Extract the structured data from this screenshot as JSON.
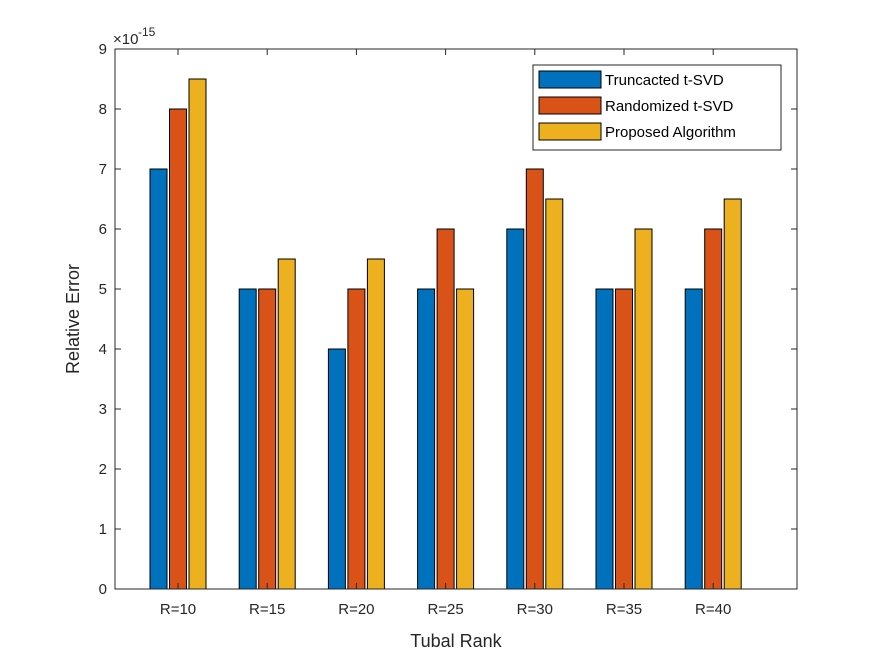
{
  "chart_data": {
    "type": "bar",
    "title": "",
    "xlabel": "Tubal Rank",
    "ylabel": "Relative Error",
    "y_exponent_label": "×10",
    "y_exponent": "-15",
    "ylim": [
      0,
      9
    ],
    "yticks": [
      "0",
      "1",
      "2",
      "3",
      "4",
      "5",
      "6",
      "7",
      "8",
      "9"
    ],
    "categories": [
      "R=10",
      "R=15",
      "R=20",
      "R=25",
      "R=30",
      "R=35",
      "R=40"
    ],
    "series": [
      {
        "name": "Truncacted t-SVD",
        "color": "#0072BD",
        "values": [
          7,
          5,
          4,
          5,
          6,
          5,
          5
        ]
      },
      {
        "name": "Randomized t-SVD",
        "color": "#D95319",
        "values": [
          8,
          5,
          5,
          6,
          7,
          5,
          6
        ]
      },
      {
        "name": "Proposed Algorithm",
        "color": "#EDB120",
        "values": [
          8.5,
          5.5,
          5.5,
          5,
          6.5,
          6,
          6.5
        ]
      }
    ],
    "grid": false,
    "legend_position": "top-right"
  }
}
